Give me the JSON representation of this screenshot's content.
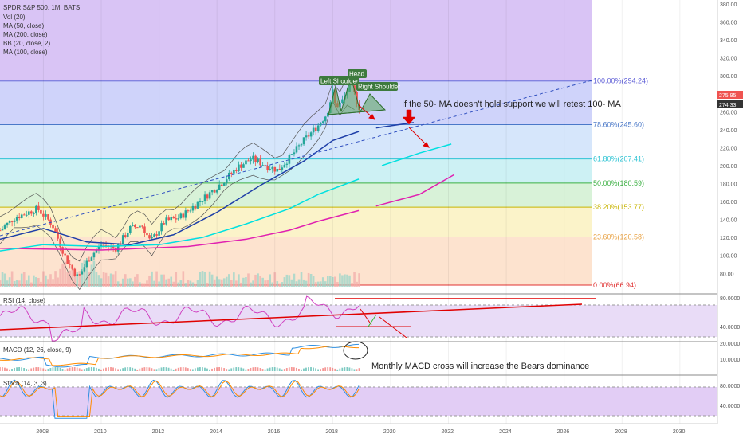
{
  "chart_data": {
    "type": "line",
    "title": "SPDR S&P 500, 1M, BATS",
    "indicators_legend": [
      "Vol (20)",
      "MA (50, close)",
      "MA (200, close)",
      "BB (20, close, 2)",
      "MA (100, close)"
    ],
    "x_ticks": [
      "2008",
      "2010",
      "2012",
      "2014",
      "2016",
      "2018",
      "2020",
      "2022",
      "2024",
      "2026",
      "2028",
      "2030"
    ],
    "y_ticks": [
      "380.00",
      "360.00",
      "340.00",
      "320.00",
      "300.00",
      "280.00",
      "260.00",
      "240.00",
      "220.00",
      "200.00",
      "180.00",
      "160.00",
      "140.00",
      "120.00",
      "100.00",
      "80.00"
    ],
    "ylim": [
      66,
      385
    ],
    "price_badges": [
      "275.95",
      "274.33"
    ],
    "fib_levels": [
      {
        "label": "100.00%(294.24)",
        "value": 294.24,
        "color": "#5c5cd6"
      },
      {
        "label": "78.60%(245.60)",
        "value": 245.6,
        "color": "#4a78c8"
      },
      {
        "label": "61.80%(207.41)",
        "value": 207.41,
        "color": "#2ec4d4"
      },
      {
        "label": "50.00%(180.59)",
        "value": 180.59,
        "color": "#3cb043"
      },
      {
        "label": "38.20%(153.77)",
        "value": 153.77,
        "color": "#c8b400"
      },
      {
        "label": "23.60%(120.58)",
        "value": 120.58,
        "color": "#e8a040"
      },
      {
        "label": "0.00%(66.94)",
        "value": 66.94,
        "color": "#e03030"
      }
    ],
    "price_series": {
      "name": "",
      "x": [
        2006.5,
        2007.0,
        2007.8,
        2008.3,
        2008.8,
        2009.2,
        2009.6,
        2010.0,
        2010.5,
        2011.0,
        2011.4,
        2011.7,
        2012.2,
        2012.7,
        2013.2,
        2013.7,
        2014.2,
        2014.7,
        2015.2,
        2015.7,
        2016.1,
        2016.6,
        2017.0,
        2017.5,
        2017.8,
        2018.0,
        2018.1,
        2018.3,
        2018.6,
        2018.75,
        2018.95
      ],
      "y": [
        128,
        142,
        152,
        135,
        95,
        75,
        98,
        112,
        108,
        130,
        134,
        115,
        138,
        142,
        155,
        168,
        182,
        198,
        208,
        200,
        195,
        212,
        228,
        245,
        258,
        282,
        266,
        270,
        290,
        280,
        262
      ]
    },
    "ma50": {
      "name": "MA 50",
      "x": [
        2006.5,
        2008.0,
        2009.5,
        2011.0,
        2012.5,
        2014.0,
        2015.5,
        2017.0,
        2018.0,
        2018.9
      ],
      "y": [
        118,
        130,
        115,
        112,
        123,
        148,
        178,
        205,
        228,
        238
      ]
    },
    "ma100": {
      "name": "MA 100",
      "x": [
        2006.5,
        2008.0,
        2010.0,
        2012.0,
        2013.5,
        2015.0,
        2016.5,
        2017.5,
        2018.9
      ],
      "y": [
        105,
        112,
        110,
        112,
        120,
        135,
        152,
        168,
        185
      ]
    },
    "ma200": {
      "name": "MA 200",
      "x": [
        2006.5,
        2010.0,
        2013.0,
        2015.0,
        2016.5,
        2017.5,
        2018.9
      ],
      "y": [
        108,
        106,
        110,
        118,
        128,
        138,
        150
      ]
    },
    "rsi_ticks": [
      "80.0000",
      "40.0000"
    ],
    "macd_ticks": [
      "20.0000",
      "10.0000"
    ],
    "stoch_ticks": [
      "80.0000",
      "40.0000"
    ]
  },
  "chart_labels": {
    "left_shoulder": "Left Shoulder",
    "head": "Head",
    "right_shoulder": "Right Shoulder",
    "ma_note": "If the 50- MA doesn't hold support we will retest 100- MA",
    "macd_note": "Monthly MACD cross will increase the Bears dominance",
    "rsi_title": "RSI (14, close)",
    "macd_title": "MACD (12, 26, close, 9)",
    "stoch_title": "Stoch (14, 3, 3)"
  },
  "colors": {
    "ma50": "#1f3fa8",
    "ma100": "#00e0e0",
    "ma200": "#e020b0",
    "price_up": "#26a69a",
    "price_down": "#ef5350",
    "annotation_red": "#e00000",
    "pattern_green": "#3d8c3d"
  }
}
